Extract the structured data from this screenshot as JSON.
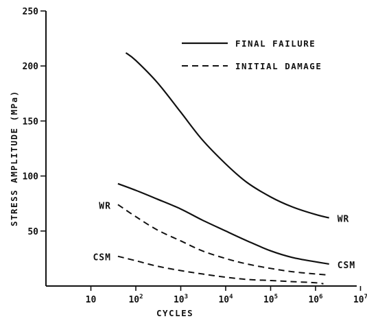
{
  "chart_data": {
    "type": "line",
    "xlabel": "CYCLES",
    "ylabel": "STRESS AMPLITUDE (MPa)",
    "x_scale": "log",
    "xlim": [
      1,
      10000000
    ],
    "ylim": [
      0,
      250
    ],
    "x_ticks": [
      {
        "value": 10,
        "base": "10",
        "exp": ""
      },
      {
        "value": 100,
        "base": "10",
        "exp": "2"
      },
      {
        "value": 1000,
        "base": "10",
        "exp": "3"
      },
      {
        "value": 10000,
        "base": "10",
        "exp": "4"
      },
      {
        "value": 100000,
        "base": "10",
        "exp": "5"
      },
      {
        "value": 1000000,
        "base": "10",
        "exp": "6"
      },
      {
        "value": 10000000,
        "base": "10",
        "exp": "7"
      }
    ],
    "y_ticks": [
      50,
      100,
      150,
      200,
      250
    ],
    "grid": false,
    "legend": {
      "placement": "top-right",
      "entries": [
        {
          "label": "FINAL FAILURE",
          "style": "solid"
        },
        {
          "label": "INITIAL DAMAGE",
          "style": "dashed"
        }
      ]
    },
    "series": [
      {
        "style": "solid",
        "label": "WR",
        "x": [
          60,
          100,
          300,
          1000,
          3000,
          10000,
          30000,
          100000,
          300000,
          1000000,
          2000000
        ],
        "y": [
          212,
          205,
          185,
          158,
          133,
          111,
          94,
          81,
          72,
          65,
          62
        ]
      },
      {
        "style": "solid",
        "label": "CSM",
        "x": [
          40,
          100,
          300,
          1000,
          3000,
          10000,
          30000,
          100000,
          300000,
          1000000,
          2000000
        ],
        "y": [
          93,
          87,
          79,
          70,
          60,
          50,
          41,
          32,
          26,
          22,
          20
        ]
      },
      {
        "style": "dashed",
        "label": "WR",
        "x": [
          40,
          100,
          300,
          1000,
          3000,
          10000,
          30000,
          100000,
          300000,
          1000000,
          2000000
        ],
        "y": [
          74,
          63,
          51,
          41,
          32,
          25,
          20,
          16,
          13,
          11,
          10
        ]
      },
      {
        "style": "dashed",
        "label": "CSM",
        "x": [
          40,
          100,
          300,
          1000,
          3000,
          10000,
          30000,
          100000,
          300000,
          1000000,
          1500000
        ],
        "y": [
          27,
          23,
          18,
          14,
          11,
          8,
          6,
          5,
          4,
          3,
          2
        ]
      }
    ]
  }
}
